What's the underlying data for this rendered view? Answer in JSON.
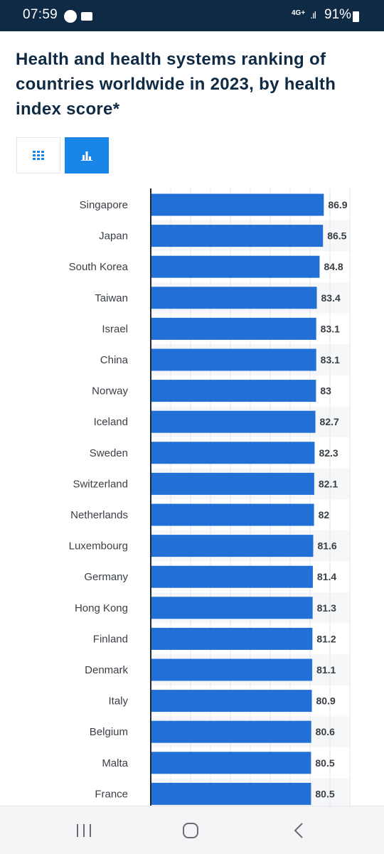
{
  "status_bar": {
    "time": "07:59",
    "network": "4G+",
    "battery": "91%"
  },
  "header": {
    "title": "Health and health systems ranking of countries worldwide in 2023, by health index score*"
  },
  "view_toggle": {
    "options": [
      "table",
      "chart"
    ],
    "active": "chart",
    "active_color": "#1a85e8"
  },
  "nav_bar": {
    "buttons": [
      "recents-icon",
      "home-icon",
      "back-icon"
    ]
  },
  "chart_data": {
    "type": "bar",
    "orientation": "horizontal",
    "title": "Health and health systems ranking of countries worldwide in 2023, by health index score*",
    "categories": [
      "Singapore",
      "Japan",
      "South Korea",
      "Taiwan",
      "Israel",
      "China",
      "Norway",
      "Iceland",
      "Sweden",
      "Switzerland",
      "Netherlands",
      "Luxembourg",
      "Germany",
      "Hong Kong",
      "Finland",
      "Denmark",
      "Italy",
      "Belgium",
      "Malta",
      "France"
    ],
    "values": [
      86.9,
      86.5,
      84.8,
      83.4,
      83.1,
      83.1,
      83,
      82.7,
      82.3,
      82.1,
      82,
      81.6,
      81.4,
      81.3,
      81.2,
      81.1,
      80.9,
      80.6,
      80.5,
      80.5
    ],
    "value_labels": [
      "86.9",
      "86.5",
      "84.8",
      "83.4",
      "83.1",
      "83.1",
      "83",
      "82.7",
      "82.3",
      "82.1",
      "82",
      "81.6",
      "81.4",
      "81.3",
      "81.2",
      "81.1",
      "80.9",
      "80.6",
      "80.5",
      "80.5"
    ],
    "xlim": [
      0,
      100
    ],
    "grid": true,
    "bar_color": "#2270d6",
    "xlabel": "",
    "ylabel": ""
  }
}
